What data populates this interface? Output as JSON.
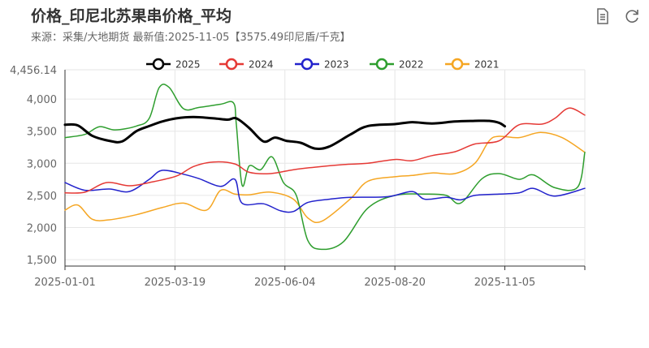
{
  "header": {
    "title": "价格_印尼北苏果串价格_平均",
    "subtitle": "来源：采集/大地期货  最新值:2025-11-05【3575.49印尼盾/千克】"
  },
  "toolbar": {
    "icons": [
      "document-icon",
      "refresh-icon"
    ]
  },
  "chart_data": {
    "type": "line",
    "xlabel": "",
    "ylabel": "",
    "y_ticks": [
      1500,
      2000,
      2500,
      3000,
      3500,
      4000,
      4456.14
    ],
    "y_tick_labels": [
      "1,500",
      "2,000",
      "2,500",
      "3,000",
      "3,500",
      "4,000",
      "4,456.14"
    ],
    "x_ticks": [
      "2025-01-01",
      "2025-03-19",
      "2025-06-04",
      "2025-08-20",
      "2025-11-05"
    ],
    "ylim": [
      1400,
      4456.14
    ],
    "xlim": [
      "2025-01-01",
      "2025-12-31"
    ],
    "legend_position": "top",
    "grid": true,
    "series": [
      {
        "name": "2025",
        "color": "#000000",
        "width": 3,
        "points": [
          [
            "2025-01-01",
            3600
          ],
          [
            "2025-01-10",
            3590
          ],
          [
            "2025-01-20",
            3430
          ],
          [
            "2025-02-01",
            3350
          ],
          [
            "2025-02-10",
            3340
          ],
          [
            "2025-02-20",
            3500
          ],
          [
            "2025-03-01",
            3580
          ],
          [
            "2025-03-10",
            3650
          ],
          [
            "2025-03-20",
            3700
          ],
          [
            "2025-04-01",
            3720
          ],
          [
            "2025-04-15",
            3700
          ],
          [
            "2025-04-25",
            3680
          ],
          [
            "2025-05-01",
            3700
          ],
          [
            "2025-05-10",
            3550
          ],
          [
            "2025-05-20",
            3340
          ],
          [
            "2025-05-28",
            3400
          ],
          [
            "2025-06-05",
            3350
          ],
          [
            "2025-06-15",
            3320
          ],
          [
            "2025-06-25",
            3230
          ],
          [
            "2025-07-05",
            3260
          ],
          [
            "2025-07-20",
            3450
          ],
          [
            "2025-08-01",
            3580
          ],
          [
            "2025-08-20",
            3610
          ],
          [
            "2025-09-01",
            3640
          ],
          [
            "2025-09-15",
            3620
          ],
          [
            "2025-10-01",
            3650
          ],
          [
            "2025-10-15",
            3660
          ],
          [
            "2025-10-25",
            3660
          ],
          [
            "2025-11-01",
            3630
          ],
          [
            "2025-11-05",
            3575.49
          ]
        ]
      },
      {
        "name": "2024",
        "color": "#e53935",
        "width": 1.5,
        "points": [
          [
            "2025-01-01",
            2540
          ],
          [
            "2025-01-15",
            2550
          ],
          [
            "2025-01-30",
            2700
          ],
          [
            "2025-02-15",
            2650
          ],
          [
            "2025-03-01",
            2700
          ],
          [
            "2025-03-20",
            2800
          ],
          [
            "2025-04-01",
            2950
          ],
          [
            "2025-04-15",
            3020
          ],
          [
            "2025-04-30",
            2990
          ],
          [
            "2025-05-10",
            2860
          ],
          [
            "2025-05-25",
            2840
          ],
          [
            "2025-06-10",
            2900
          ],
          [
            "2025-06-25",
            2940
          ],
          [
            "2025-07-15",
            2980
          ],
          [
            "2025-08-01",
            3000
          ],
          [
            "2025-08-20",
            3060
          ],
          [
            "2025-09-01",
            3040
          ],
          [
            "2025-09-15",
            3120
          ],
          [
            "2025-10-01",
            3180
          ],
          [
            "2025-10-15",
            3300
          ],
          [
            "2025-11-01",
            3350
          ],
          [
            "2025-11-15",
            3600
          ],
          [
            "2025-12-01",
            3610
          ],
          [
            "2025-12-10",
            3700
          ],
          [
            "2025-12-20",
            3860
          ],
          [
            "2025-12-31",
            3750
          ]
        ]
      },
      {
        "name": "2023",
        "color": "#2222cc",
        "width": 1.5,
        "points": [
          [
            "2025-01-01",
            2700
          ],
          [
            "2025-01-15",
            2580
          ],
          [
            "2025-02-01",
            2600
          ],
          [
            "2025-02-15",
            2560
          ],
          [
            "2025-03-01",
            2750
          ],
          [
            "2025-03-10",
            2890
          ],
          [
            "2025-03-25",
            2830
          ],
          [
            "2025-04-05",
            2760
          ],
          [
            "2025-04-20",
            2640
          ],
          [
            "2025-04-30",
            2750
          ],
          [
            "2025-05-05",
            2380
          ],
          [
            "2025-05-20",
            2370
          ],
          [
            "2025-06-01",
            2260
          ],
          [
            "2025-06-10",
            2250
          ],
          [
            "2025-06-20",
            2390
          ],
          [
            "2025-07-05",
            2440
          ],
          [
            "2025-07-20",
            2470
          ],
          [
            "2025-08-15",
            2480
          ],
          [
            "2025-09-01",
            2560
          ],
          [
            "2025-09-10",
            2440
          ],
          [
            "2025-09-25",
            2470
          ],
          [
            "2025-10-05",
            2430
          ],
          [
            "2025-10-15",
            2500
          ],
          [
            "2025-11-01",
            2520
          ],
          [
            "2025-11-15",
            2540
          ],
          [
            "2025-11-25",
            2610
          ],
          [
            "2025-12-10",
            2490
          ],
          [
            "2025-12-31",
            2610
          ]
        ]
      },
      {
        "name": "2022",
        "color": "#2e9e2e",
        "width": 1.5,
        "points": [
          [
            "2025-01-01",
            3400
          ],
          [
            "2025-01-15",
            3450
          ],
          [
            "2025-01-25",
            3570
          ],
          [
            "2025-02-05",
            3520
          ],
          [
            "2025-02-20",
            3580
          ],
          [
            "2025-03-01",
            3700
          ],
          [
            "2025-03-08",
            4180
          ],
          [
            "2025-03-15",
            4180
          ],
          [
            "2025-03-25",
            3850
          ],
          [
            "2025-04-05",
            3870
          ],
          [
            "2025-04-20",
            3920
          ],
          [
            "2025-04-29",
            3940
          ],
          [
            "2025-05-01",
            3600
          ],
          [
            "2025-05-05",
            2660
          ],
          [
            "2025-05-10",
            2960
          ],
          [
            "2025-05-18",
            2900
          ],
          [
            "2025-05-26",
            3100
          ],
          [
            "2025-06-03",
            2700
          ],
          [
            "2025-06-12",
            2500
          ],
          [
            "2025-06-20",
            1800
          ],
          [
            "2025-06-30",
            1660
          ],
          [
            "2025-07-15",
            1780
          ],
          [
            "2025-08-01",
            2300
          ],
          [
            "2025-08-20",
            2500
          ],
          [
            "2025-09-10",
            2520
          ],
          [
            "2025-09-25",
            2500
          ],
          [
            "2025-10-05",
            2380
          ],
          [
            "2025-10-20",
            2760
          ],
          [
            "2025-11-01",
            2840
          ],
          [
            "2025-11-15",
            2750
          ],
          [
            "2025-11-25",
            2820
          ],
          [
            "2025-12-10",
            2620
          ],
          [
            "2025-12-26",
            2630
          ],
          [
            "2025-12-31",
            3170
          ]
        ]
      },
      {
        "name": "2021",
        "color": "#f5a623",
        "width": 1.5,
        "points": [
          [
            "2025-01-01",
            2270
          ],
          [
            "2025-01-10",
            2350
          ],
          [
            "2025-01-20",
            2130
          ],
          [
            "2025-02-01",
            2120
          ],
          [
            "2025-02-20",
            2200
          ],
          [
            "2025-03-10",
            2310
          ],
          [
            "2025-03-25",
            2380
          ],
          [
            "2025-04-10",
            2270
          ],
          [
            "2025-04-20",
            2580
          ],
          [
            "2025-04-30",
            2520
          ],
          [
            "2025-05-10",
            2510
          ],
          [
            "2025-05-25",
            2550
          ],
          [
            "2025-06-10",
            2440
          ],
          [
            "2025-06-20",
            2150
          ],
          [
            "2025-06-30",
            2100
          ],
          [
            "2025-07-20",
            2450
          ],
          [
            "2025-08-01",
            2720
          ],
          [
            "2025-08-20",
            2790
          ],
          [
            "2025-09-01",
            2810
          ],
          [
            "2025-09-15",
            2850
          ],
          [
            "2025-10-01",
            2840
          ],
          [
            "2025-10-15",
            3000
          ],
          [
            "2025-10-25",
            3350
          ],
          [
            "2025-11-01",
            3420
          ],
          [
            "2025-11-15",
            3400
          ],
          [
            "2025-11-30",
            3480
          ],
          [
            "2025-12-15",
            3400
          ],
          [
            "2025-12-31",
            3170
          ]
        ]
      }
    ]
  }
}
